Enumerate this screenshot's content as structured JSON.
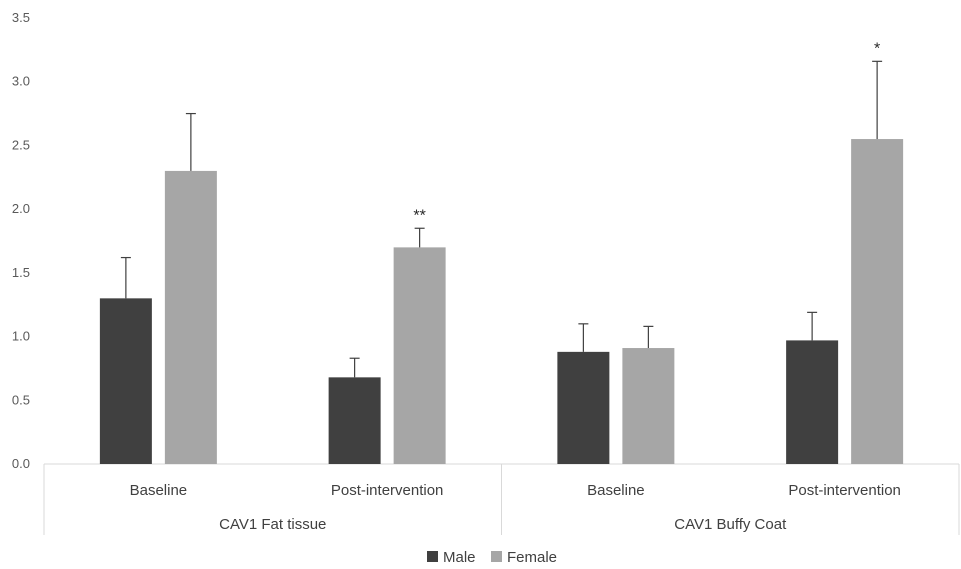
{
  "chart_data": {
    "type": "bar",
    "title": "",
    "xlabel": "",
    "ylabel": "",
    "ylim": [
      0,
      3.5
    ],
    "yticks": [
      "0.0",
      "0.5",
      "1.0",
      "1.5",
      "2.0",
      "2.5",
      "3.0",
      "3.5"
    ],
    "grid": false,
    "legend_position": "bottom",
    "groups": [
      {
        "label": "CAV1 Fat tissue",
        "categories": [
          "Baseline",
          "Post-intervention"
        ]
      },
      {
        "label": "CAV1 Buffy Coat",
        "categories": [
          "Baseline",
          "Post-intervention"
        ]
      }
    ],
    "categories": [
      "Baseline",
      "Post-intervention",
      "Baseline",
      "Post-intervention"
    ],
    "series": [
      {
        "name": "Male",
        "color": "#404040",
        "values": [
          1.3,
          0.68,
          0.88,
          0.97
        ],
        "error": [
          0.32,
          0.15,
          0.22,
          0.22
        ]
      },
      {
        "name": "Female",
        "color": "#a6a6a6",
        "values": [
          2.3,
          1.7,
          0.91,
          2.55
        ],
        "error": [
          0.45,
          0.15,
          0.17,
          0.61
        ]
      }
    ],
    "annotations": [
      {
        "category_index": 1,
        "series": "Female",
        "text": "**"
      },
      {
        "category_index": 3,
        "series": "Female",
        "text": "*"
      }
    ]
  }
}
